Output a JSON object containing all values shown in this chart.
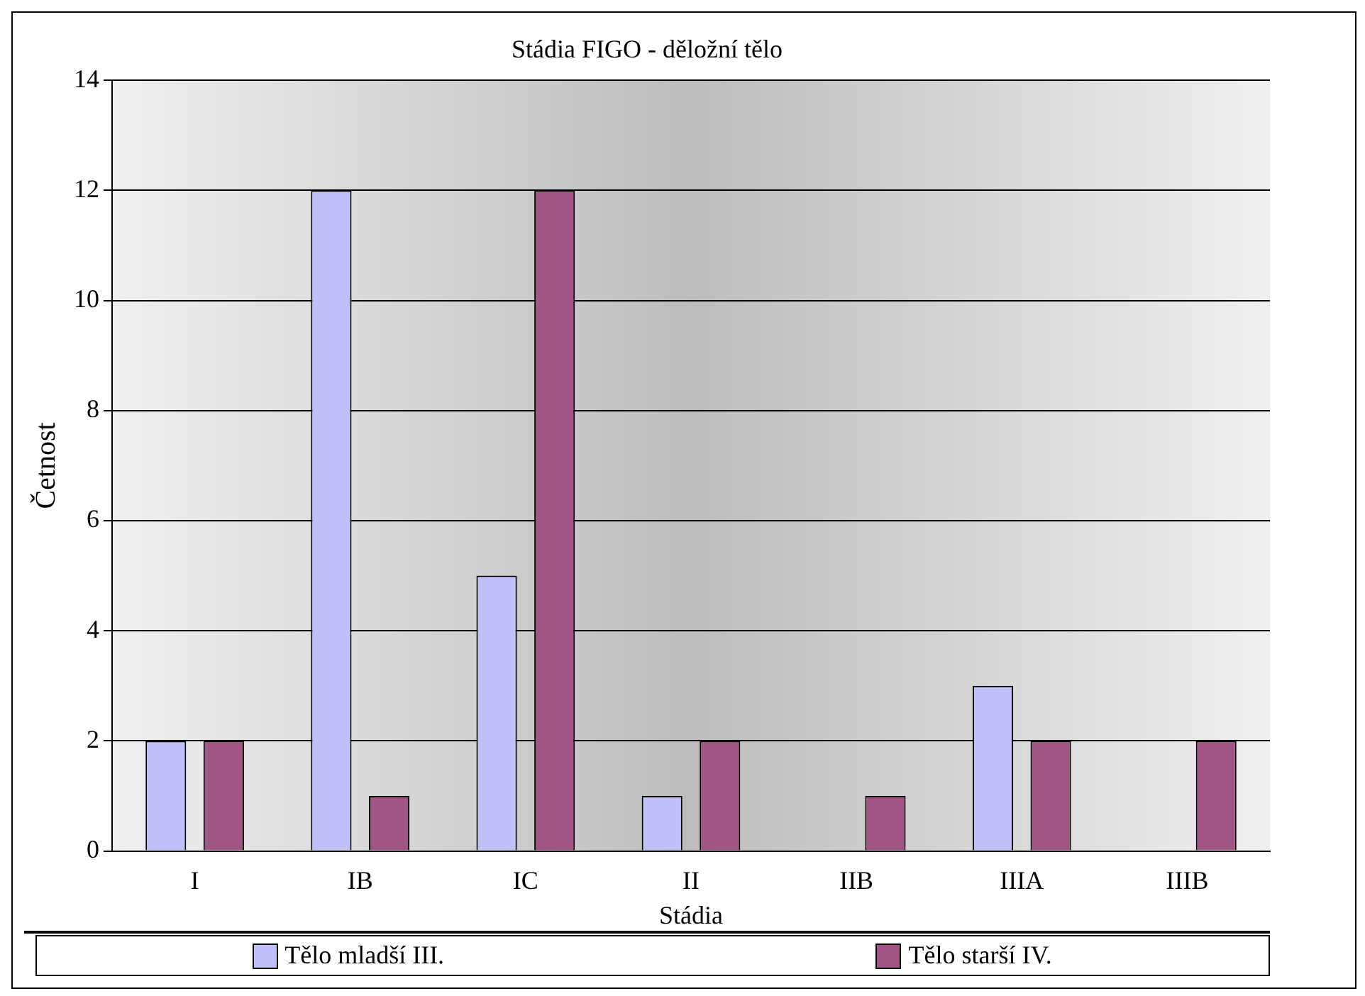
{
  "chart_data": {
    "type": "bar",
    "title": "Stádia FIGO - děložní tělo",
    "xlabel": "Stádia",
    "ylabel": "Četnost",
    "categories": [
      "I",
      "IB",
      "IC",
      "II",
      "IIB",
      "IIIA",
      "IIIB"
    ],
    "series": [
      {
        "name": "Tělo mladší III.",
        "color": "#c0c0fa",
        "values": [
          2,
          12,
          5,
          1,
          0,
          3,
          0
        ]
      },
      {
        "name": "Tělo starší IV.",
        "color": "#a05585",
        "values": [
          2,
          1,
          12,
          2,
          1,
          2,
          2
        ]
      }
    ],
    "ylim": [
      0,
      14
    ],
    "yticks": [
      0,
      2,
      4,
      6,
      8,
      10,
      12,
      14
    ],
    "grid": "y",
    "legend": "bottom"
  }
}
